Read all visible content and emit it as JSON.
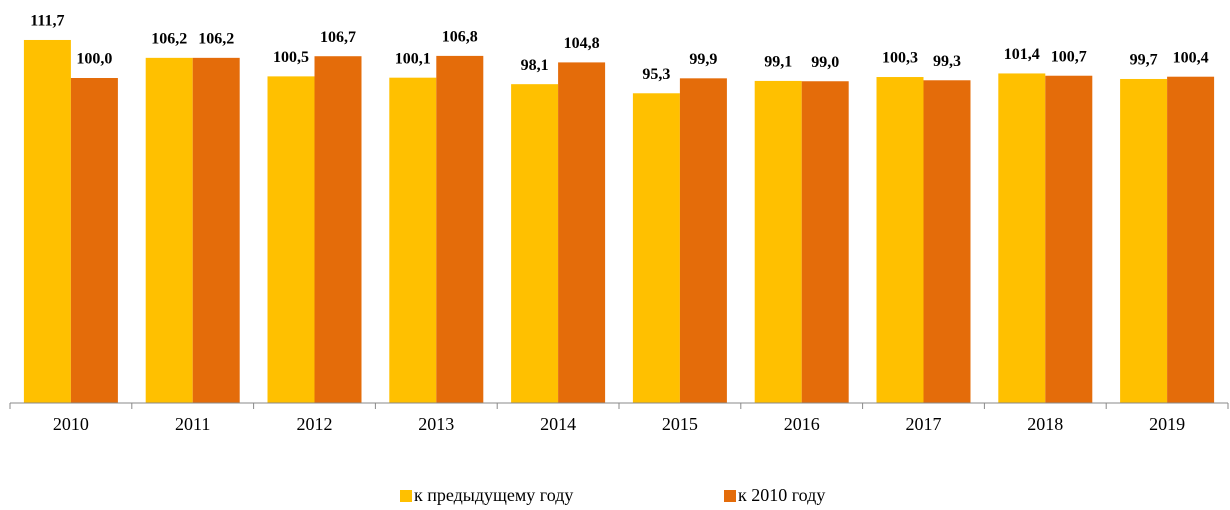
{
  "chart_data": {
    "type": "bar",
    "categories": [
      "2010",
      "2011",
      "2012",
      "2013",
      "2014",
      "2015",
      "2016",
      "2017",
      "2018",
      "2019"
    ],
    "series": [
      {
        "name": "к предыдущему году",
        "color": "#FFC000",
        "values": [
          111.7,
          106.2,
          100.5,
          100.1,
          98.1,
          95.3,
          99.1,
          100.3,
          101.4,
          99.7
        ],
        "value_labels": [
          "111,7",
          "106,2",
          "100,5",
          "100,1",
          "98,1",
          "95,3",
          "99,1",
          "100,3",
          "101,4",
          "99,7"
        ]
      },
      {
        "name": "к 2010 году",
        "color": "#E46C0A",
        "values": [
          100.0,
          106.2,
          106.7,
          106.8,
          104.8,
          99.9,
          99.0,
          99.3,
          100.7,
          100.4
        ],
        "value_labels": [
          "100,0",
          "106,2",
          "106,7",
          "106,8",
          "104,8",
          "99,9",
          "99,0",
          "99,3",
          "100,7",
          "100,4"
        ]
      }
    ],
    "ylim": [
      0,
      124
    ],
    "legend": "bottom"
  }
}
